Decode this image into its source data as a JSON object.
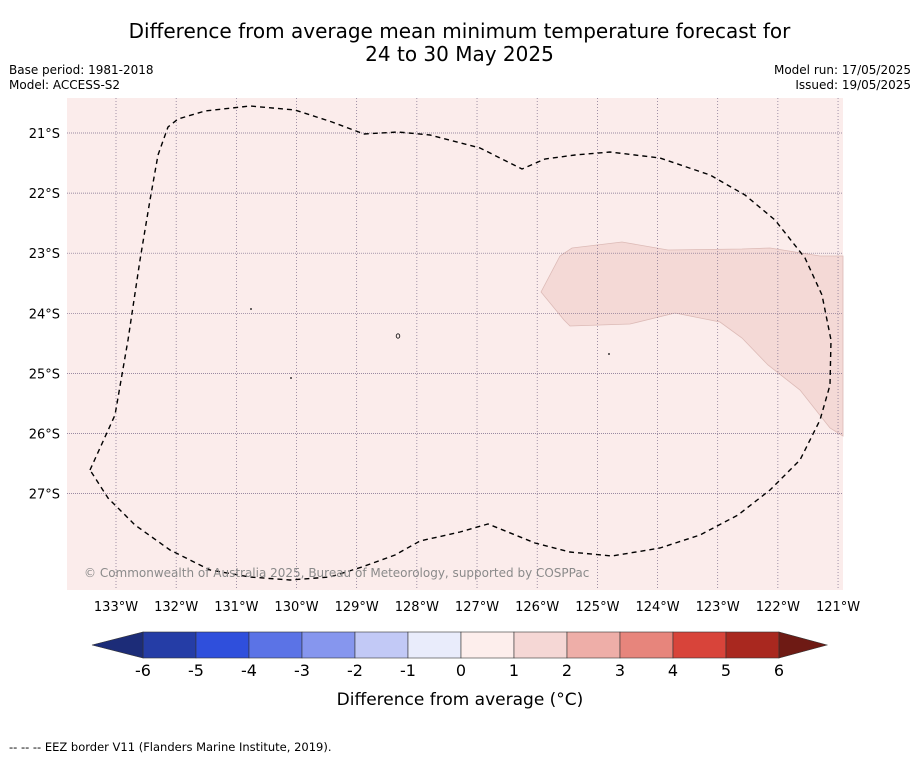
{
  "title": {
    "line1": "Difference from average mean minimum temperature forecast for",
    "line2": "24 to 30 May 2025"
  },
  "meta": {
    "base_period": "Base period: 1981-2018",
    "model": "Model: ACCESS-S2",
    "model_run": "Model run: 17/05/2025",
    "issued": "Issued: 19/05/2025"
  },
  "map": {
    "lon_labels": [
      "133°W",
      "132°W",
      "131°W",
      "130°W",
      "129°W",
      "128°W",
      "127°W",
      "126°W",
      "125°W",
      "124°W",
      "123°W",
      "122°W",
      "121°W"
    ],
    "lat_labels": [
      "21°S",
      "22°S",
      "23°S",
      "24°S",
      "25°S",
      "26°S",
      "27°S"
    ],
    "copyright": "© Commonwealth of Australia 2025, Bureau of Meteorology, supported by COSPPac",
    "background_anomaly": "0 to 1",
    "patch_anomaly": "1 to 2"
  },
  "colorbar": {
    "ticks": [
      "-6",
      "-5",
      "-4",
      "-3",
      "-2",
      "-1",
      "0",
      "1",
      "2",
      "3",
      "4",
      "5",
      "6"
    ],
    "colors": [
      "#253da6",
      "#2f4fdc",
      "#5b73e6",
      "#8696ee",
      "#c2c9f6",
      "#e9ecfb",
      "#fdeeec",
      "#f5d7d5",
      "#eeaea8",
      "#e7857c",
      "#d8443a",
      "#a9281f"
    ],
    "low_extend_color": "#1c2c78",
    "high_extend_color": "#6e1a14",
    "label": "Difference from average (°C)"
  },
  "legend": {
    "eez": "--  --  -- EEZ border V11 (Flanders Marine Institute, 2019)."
  }
}
